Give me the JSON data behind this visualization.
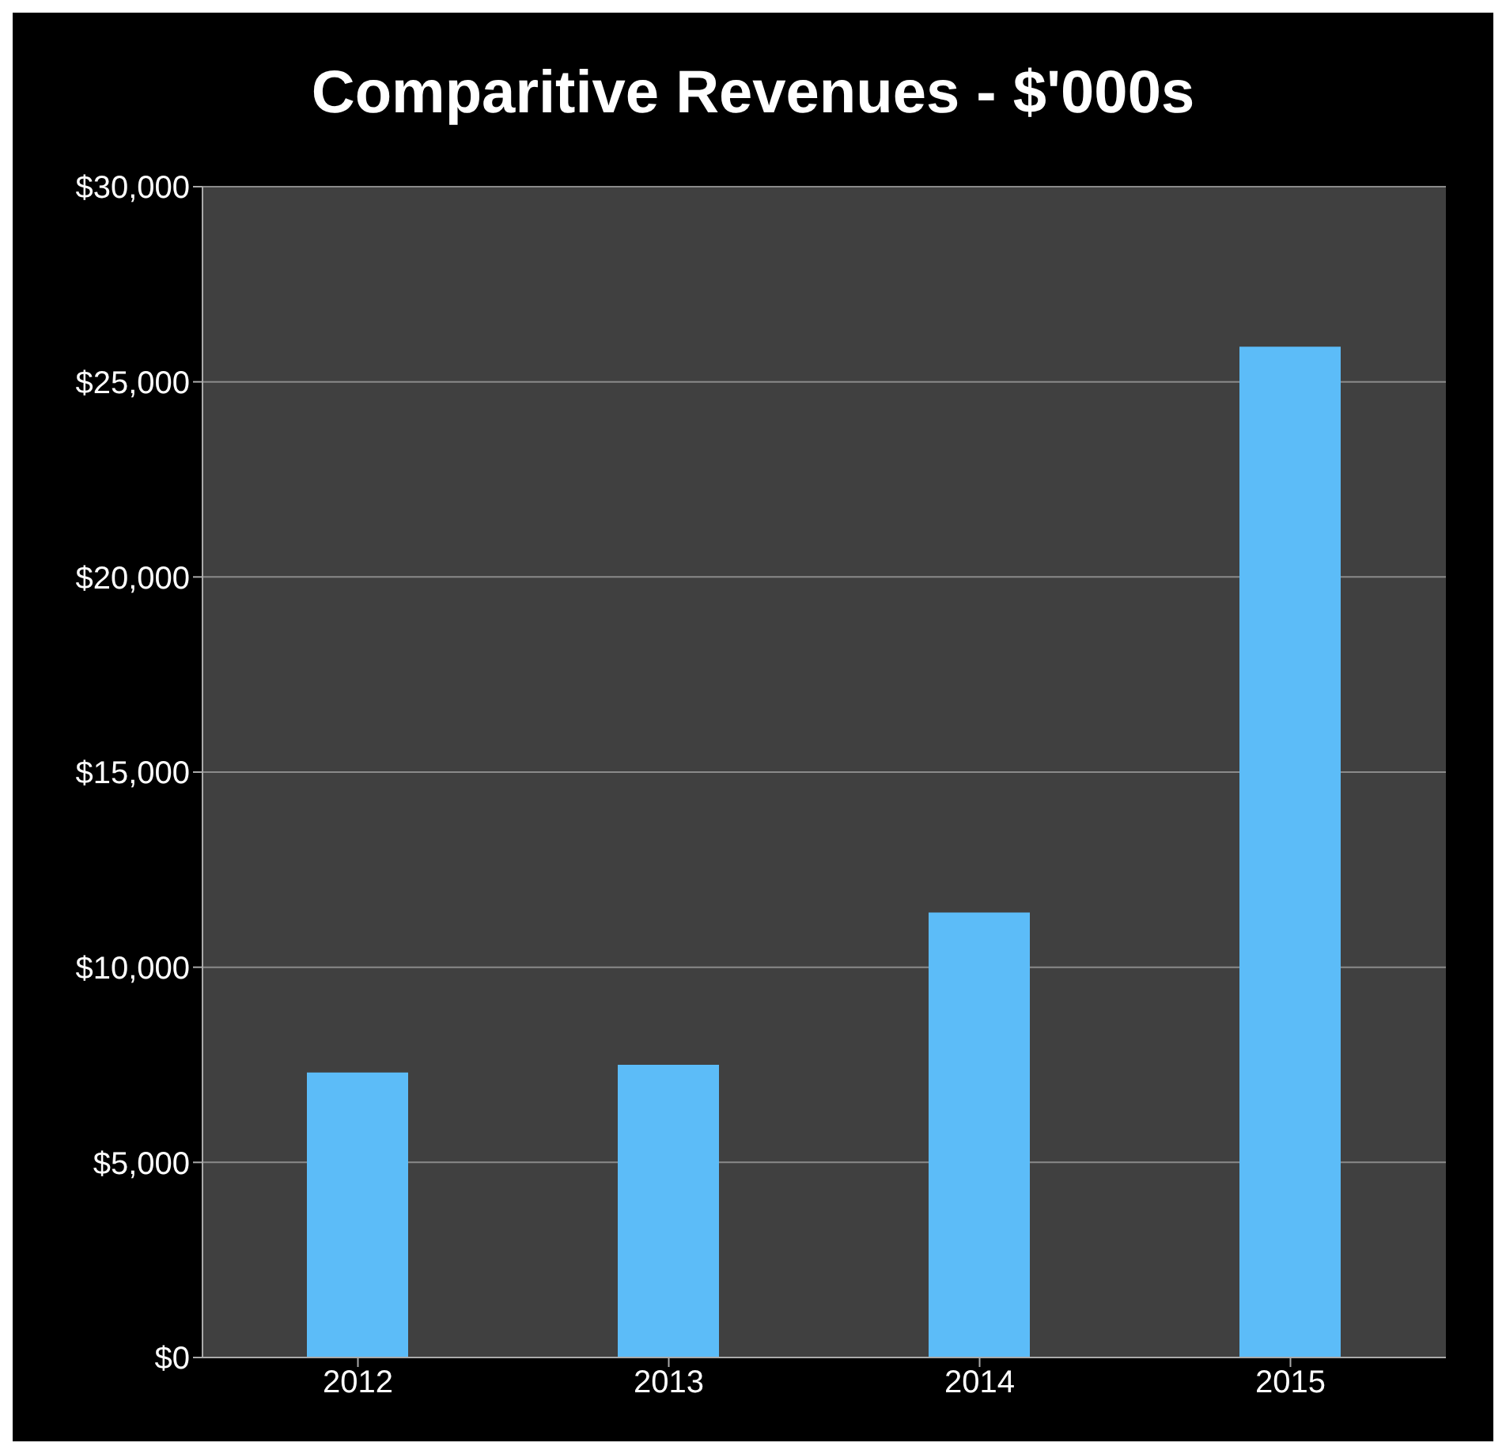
{
  "chart_data": {
    "type": "bar",
    "title": "Comparitive Revenues - $'000s",
    "categories": [
      "2012",
      "2013",
      "2014",
      "2015"
    ],
    "values": [
      7300,
      7500,
      11400,
      25900
    ],
    "color": "#5cbcf8",
    "ylim": [
      0,
      30000
    ],
    "yticks": [
      {
        "value": 0,
        "label": "$0"
      },
      {
        "value": 5000,
        "label": "$5,000"
      },
      {
        "value": 10000,
        "label": "$10,000"
      },
      {
        "value": 15000,
        "label": "$15,000"
      },
      {
        "value": 20000,
        "label": "$20,000"
      },
      {
        "value": 25000,
        "label": "$25,000"
      },
      {
        "value": 30000,
        "label": "$30,000"
      }
    ],
    "grid": "y"
  }
}
